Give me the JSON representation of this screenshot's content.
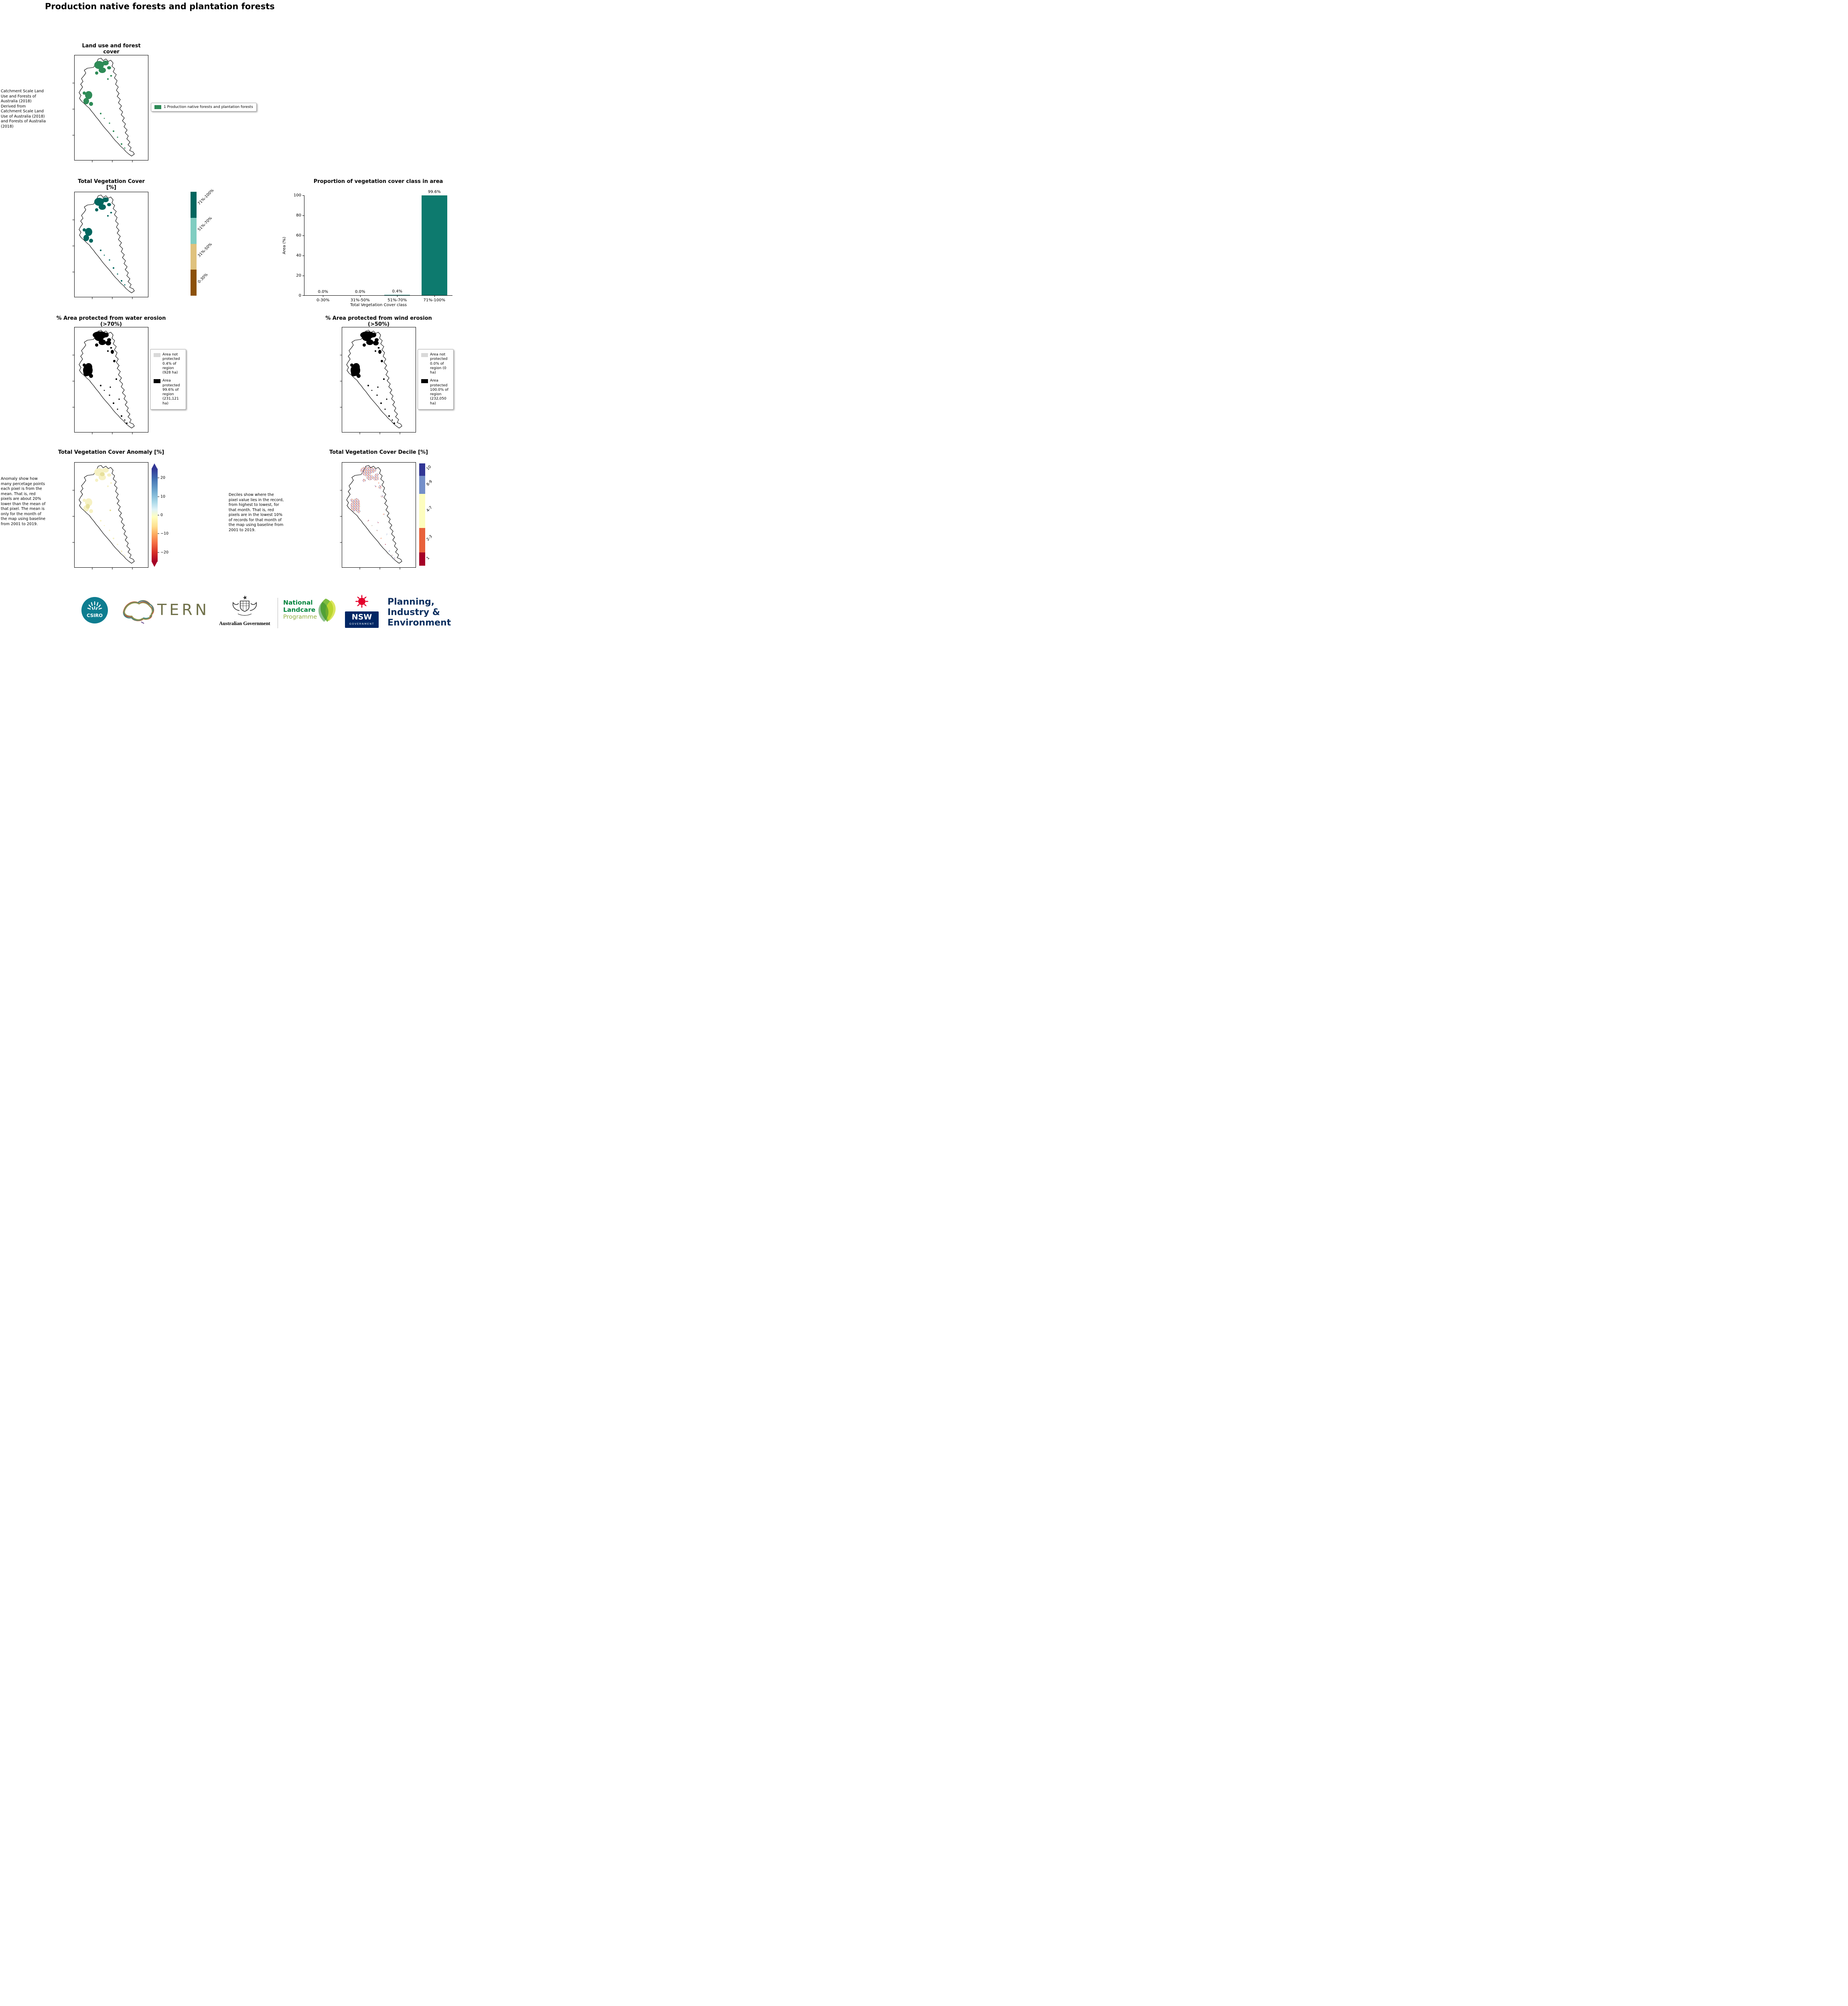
{
  "page": {
    "title": "Production native forests and plantation forests"
  },
  "landuse": {
    "title": "Land use and forest cover",
    "caption": "Catchment Scale Land Use and Forests of Australia (2018) Derived from Catchment Scale Land Use of Australia (2018) and Forests of Australia (2018)",
    "legend": {
      "label": "1 Production native forests and plantation forests",
      "color": "#2e8b57"
    }
  },
  "tvc_map": {
    "title": "Total Vegetation Cover [%]",
    "patch_color": "#01665e",
    "colorbar": [
      {
        "label": "71%-100%",
        "color": "#01665e"
      },
      {
        "label": "51%-70%",
        "color": "#80cdc1"
      },
      {
        "label": "31%-50%",
        "color": "#dfc27d"
      },
      {
        "label": "0-30%",
        "color": "#8c510a"
      }
    ]
  },
  "chart_data": {
    "type": "bar",
    "title": "Proportion of vegetation cover class in area",
    "categories": [
      "0-30%",
      "31%-50%",
      "51%-70%",
      "71%-100%"
    ],
    "values": [
      0.0,
      0.0,
      0.4,
      99.6
    ],
    "bar_labels": [
      "0.0%",
      "0.0%",
      "0.4%",
      "99.6%"
    ],
    "xlabel": "Total Vegetation Cover class",
    "ylabel": "Area (%)",
    "ylim": [
      0,
      100
    ],
    "yticks": [
      "0",
      "20",
      "40",
      "60",
      "80",
      "100"
    ],
    "bar_color": "#0d7a6e",
    "grid": false,
    "legend_position": "none"
  },
  "water_erosion": {
    "title": "% Area protected from water erosion (>70%)",
    "legend": [
      {
        "label": "Area not protected 0.4% of region (928 ha)",
        "color": "#d9d9d9"
      },
      {
        "label": "Area protected 99.6% of region (231,121 ha)",
        "color": "#000000"
      }
    ]
  },
  "wind_erosion": {
    "title": "% Area protected from wind erosion (>50%)",
    "legend": [
      {
        "label": "Area not protected 0.0% of region (0 ha)",
        "color": "#d9d9d9"
      },
      {
        "label": "Area protected 100.0% of region (232,050 ha)",
        "color": "#000000"
      }
    ]
  },
  "anomaly": {
    "title": "Total Vegetation Cover Anomaly [%]",
    "caption": "Anomaly show how many percetage points each pixel is from the mean. That is, red pixels are about 20% lower than the mean of that pixel. The mean is only for the month of the map using baseline from 2001 to 2019.",
    "patch_color": "#f6f1c3",
    "colorbar_ticks": [
      "20",
      "10",
      "0",
      "−10",
      "−20"
    ],
    "colorbar_top_color": "#313695",
    "colorbar_bottom_color": "#a50026"
  },
  "decile": {
    "title": "Total Vegetation Cover Decile [%]",
    "caption": "Deciles show where the pixel value lies in the record, from highest to lowest, for that month. That is, red pixels are in the lowest 10% of records for that month of the map using baseline from 2001 to 2019.",
    "colorbar": [
      {
        "label": "10",
        "color": "#313695"
      },
      {
        "label": "8-9",
        "color": "#748fc9"
      },
      {
        "label": "4-7",
        "color": "#fdfdbe"
      },
      {
        "label": "2-3",
        "color": "#e8613b"
      },
      {
        "label": "1",
        "color": "#a50026"
      }
    ]
  },
  "footer": {
    "csiro_label": "CSIRO",
    "tern_label": "TERN",
    "ausgov_label": "Australian Government",
    "landcare_line1": "National",
    "landcare_line2": "Landcare",
    "landcare_line3": "Programme",
    "nsw_label": "NSW",
    "nsw_sublabel": "GOVERNMENT",
    "pie_line1": "Planning,",
    "pie_line2": "Industry &",
    "pie_line3": "Environment"
  }
}
